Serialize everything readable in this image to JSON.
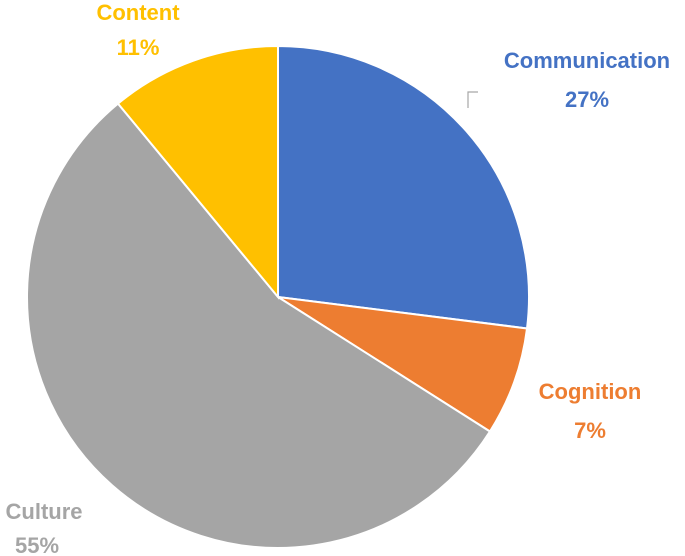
{
  "chart_data": {
    "type": "pie",
    "slices": [
      {
        "label": "Communication",
        "value": 27,
        "value_label": "27%",
        "color": "#4472C4"
      },
      {
        "label": "Cognition",
        "value": 7,
        "value_label": "7%",
        "color": "#ED7D31"
      },
      {
        "label": "Culture",
        "value": 55,
        "value_label": "55%",
        "color": "#A5A5A5"
      },
      {
        "label": "Content",
        "value": 11,
        "value_label": "11%",
        "color": "#FFC000"
      }
    ],
    "start_angle": "12 o'clock",
    "direction": "clockwise",
    "legend": "none",
    "data_labels": "category name and percentage outside slices"
  }
}
